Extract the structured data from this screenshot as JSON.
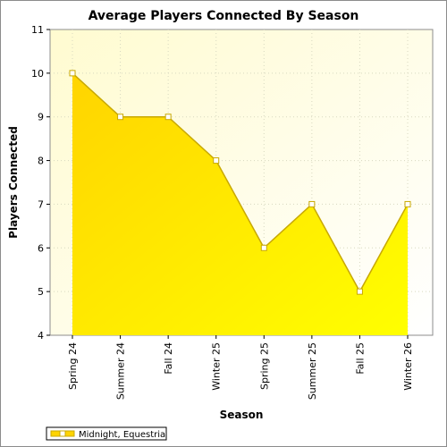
{
  "chart_data": {
    "type": "area",
    "title": "Average Players Connected By Season",
    "xlabel": "Season",
    "ylabel": "Players Connected",
    "categories": [
      "Spring 24",
      "Summer 24",
      "Fall 24",
      "Winter 25",
      "Spring 25",
      "Summer 25",
      "Fall 25",
      "Winter 26"
    ],
    "series": [
      {
        "name": "Midnight, Equestria",
        "values": [
          10,
          9,
          9,
          8,
          6,
          7,
          5,
          7
        ]
      }
    ],
    "ylim": [
      4,
      11
    ],
    "yticks": [
      4,
      5,
      6,
      7,
      8,
      9,
      10,
      11
    ],
    "grid": true,
    "legend_position": "bottom-left",
    "colors": {
      "plot_background": "#ffffe6",
      "fill_top": "#ffd400",
      "fill_bottom": "#ffff00",
      "line": "#c8a800",
      "marker_fill": "#ffffff"
    }
  }
}
